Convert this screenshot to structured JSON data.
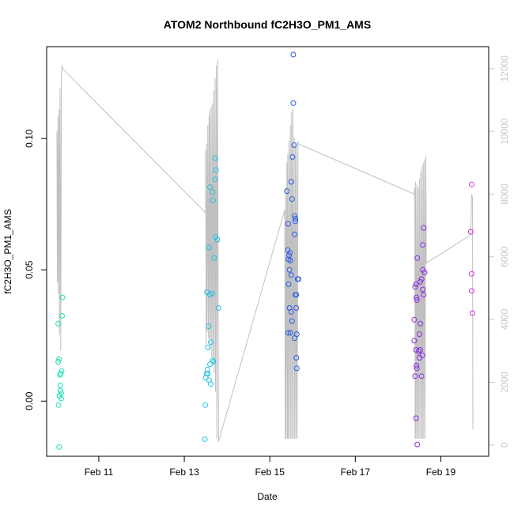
{
  "chart_data": {
    "type": "scatter",
    "title": "ATOM2 Northbound fC2H3O_PM1_AMS",
    "xlabel": "Date",
    "ylabel": "fC2H3O_PM1_AMS",
    "x_ticks": [
      "Feb 11",
      "Feb 13",
      "Feb 15",
      "Feb 17",
      "Feb 19"
    ],
    "x_tick_days": [
      11,
      13,
      15,
      17,
      19
    ],
    "xlim_days": [
      9.78,
      20.12
    ],
    "y_ticks": [
      "0.00",
      "0.05",
      "0.10"
    ],
    "y_tick_values": [
      0.0,
      0.05,
      0.1
    ],
    "ylim": [
      -0.021,
      0.135
    ],
    "y2_ticks": [
      "0",
      "2000",
      "4000",
      "6000",
      "8000",
      "10000",
      "12000"
    ],
    "y2_tick_values": [
      0,
      2000,
      4000,
      6000,
      8000,
      10000,
      12000
    ],
    "y2lim": [
      -360,
      12700
    ],
    "grid": false,
    "colors": {
      "background": "#ffffff",
      "frame": "#000000",
      "line_series": "#c0c0c0",
      "right_axis": "#c8c8c8"
    },
    "series": [
      {
        "color": "#19e0b4",
        "points": [
          [
            10.07,
            -0.0175
          ],
          [
            10.05,
            0.0295
          ],
          [
            10.05,
            0.015
          ],
          [
            10.07,
            0.016
          ],
          [
            10.09,
            0.01
          ],
          [
            10.1,
            0.006
          ],
          [
            10.1,
            0.004
          ],
          [
            10.08,
            0.002
          ],
          [
            10.12,
            0.001
          ],
          [
            10.11,
            0.0105
          ],
          [
            10.13,
            0.0115
          ],
          [
            10.14,
            0.0325
          ],
          [
            10.15,
            0.0395
          ],
          [
            10.06,
            -0.0015
          ],
          [
            10.12,
            0.003
          ]
        ]
      },
      {
        "color": "#22c3e6",
        "points": [
          [
            13.48,
            -0.0145
          ],
          [
            13.49,
            -0.0015
          ],
          [
            13.5,
            0.009
          ],
          [
            13.52,
            0.0105
          ],
          [
            13.54,
            0.012
          ],
          [
            13.55,
            0.0205
          ],
          [
            13.57,
            0.0285
          ],
          [
            13.53,
            0.0415
          ],
          [
            13.6,
            0.0405
          ],
          [
            13.65,
            0.041
          ],
          [
            13.62,
            0.0225
          ],
          [
            13.6,
            0.014
          ],
          [
            13.62,
            0.0065
          ],
          [
            13.58,
            0.008
          ],
          [
            13.68,
            0.015
          ],
          [
            13.66,
            0.0155
          ],
          [
            13.58,
            0.0585
          ],
          [
            13.6,
            0.0815
          ],
          [
            13.66,
            0.0795
          ],
          [
            13.67,
            0.0765
          ],
          [
            13.72,
            0.0845
          ],
          [
            13.72,
            0.0925
          ],
          [
            13.74,
            0.088
          ],
          [
            13.7,
            0.0545
          ],
          [
            13.73,
            0.0625
          ],
          [
            13.77,
            0.0615
          ],
          [
            13.8,
            0.0355
          ],
          [
            13.55,
            0.0105
          ]
        ]
      },
      {
        "color": "#2b5ee8",
        "points": [
          [
            15.4,
            0.08
          ],
          [
            15.43,
            0.0675
          ],
          [
            15.42,
            0.0575
          ],
          [
            15.44,
            0.054
          ],
          [
            15.45,
            0.0555
          ],
          [
            15.47,
            0.0565
          ],
          [
            15.46,
            0.05
          ],
          [
            15.48,
            0.0535
          ],
          [
            15.5,
            0.048
          ],
          [
            15.44,
            0.0445
          ],
          [
            15.46,
            0.0355
          ],
          [
            15.5,
            0.034
          ],
          [
            15.48,
            0.026
          ],
          [
            15.43,
            0.026
          ],
          [
            15.52,
            0.0305
          ],
          [
            15.5,
            0.0835
          ],
          [
            15.52,
            0.077
          ],
          [
            15.53,
            0.093
          ],
          [
            15.55,
            0.1135
          ],
          [
            15.57,
            0.0975
          ],
          [
            15.55,
            0.132
          ],
          [
            15.58,
            0.0635
          ],
          [
            15.58,
            0.0705
          ],
          [
            15.6,
            0.0685
          ],
          [
            15.6,
            0.0405
          ],
          [
            15.62,
            0.0405
          ],
          [
            15.62,
            0.0355
          ],
          [
            15.65,
            0.0465
          ],
          [
            15.67,
            0.0465
          ],
          [
            15.63,
            0.0255
          ],
          [
            15.58,
            0.024
          ],
          [
            15.62,
            0.0165
          ],
          [
            15.63,
            0.0125
          ],
          [
            15.6,
            0.0695
          ]
        ]
      },
      {
        "color": "#8a2be2",
        "points": [
          [
            18.38,
            0.031
          ],
          [
            18.38,
            0.023
          ],
          [
            18.4,
            0.0095
          ],
          [
            18.42,
            0.0195
          ],
          [
            18.43,
            0.0135
          ],
          [
            18.44,
            0.0125
          ],
          [
            18.4,
            0.0435
          ],
          [
            18.42,
            0.0445
          ],
          [
            18.43,
            0.0395
          ],
          [
            18.44,
            0.0385
          ],
          [
            18.45,
            0.0545
          ],
          [
            18.42,
            -0.0065
          ],
          [
            18.45,
            -0.0165
          ],
          [
            18.48,
            0.019
          ],
          [
            18.5,
            0.0165
          ],
          [
            18.52,
            0.0195
          ],
          [
            18.5,
            0.0255
          ],
          [
            18.52,
            0.0295
          ],
          [
            18.55,
            0.0095
          ],
          [
            18.57,
            0.0175
          ],
          [
            18.58,
            0.0425
          ],
          [
            18.6,
            0.0405
          ],
          [
            18.58,
            0.05
          ],
          [
            18.62,
            0.049
          ],
          [
            18.55,
            0.0465
          ],
          [
            18.58,
            0.0595
          ],
          [
            18.6,
            0.066
          ],
          [
            18.52,
            0.0455
          ]
        ]
      },
      {
        "color": "#d633d6",
        "points": [
          [
            19.72,
            0.0825
          ],
          [
            19.7,
            0.0645
          ],
          [
            19.72,
            0.0485
          ],
          [
            19.72,
            0.042
          ],
          [
            19.74,
            0.0335
          ]
        ]
      }
    ],
    "line_series": {
      "axis": "right",
      "color": "#c0c0c0",
      "points": [
        [
          10.02,
          10000
        ],
        [
          10.03,
          5200
        ],
        [
          10.045,
          10500
        ],
        [
          10.055,
          4800
        ],
        [
          10.07,
          10700
        ],
        [
          10.08,
          3500
        ],
        [
          10.095,
          11400
        ],
        [
          10.11,
          3000
        ],
        [
          10.125,
          11800
        ],
        [
          10.14,
          12100
        ],
        [
          10.15,
          12000
        ],
        [
          13.5,
          7400
        ],
        [
          13.5,
          9400
        ],
        [
          13.51,
          3200
        ],
        [
          13.52,
          9600
        ],
        [
          13.53,
          3600
        ],
        [
          13.55,
          10200
        ],
        [
          13.56,
          3400
        ],
        [
          13.58,
          10500
        ],
        [
          13.59,
          3000
        ],
        [
          13.6,
          10700
        ],
        [
          13.61,
          3400
        ],
        [
          13.63,
          10800
        ],
        [
          13.64,
          2800
        ],
        [
          13.66,
          10900
        ],
        [
          13.67,
          2600
        ],
        [
          13.69,
          11300
        ],
        [
          13.7,
          2300
        ],
        [
          13.72,
          11700
        ],
        [
          13.73,
          1700
        ],
        [
          13.75,
          12100
        ],
        [
          13.76,
          200
        ],
        [
          13.78,
          12300
        ],
        [
          13.8,
          100
        ],
        [
          15.35,
          7500
        ],
        [
          15.36,
          200
        ],
        [
          15.37,
          8200
        ],
        [
          15.38,
          200
        ],
        [
          15.4,
          9000
        ],
        [
          15.41,
          200
        ],
        [
          15.42,
          9300
        ],
        [
          15.43,
          200
        ],
        [
          15.45,
          9700
        ],
        [
          15.46,
          200
        ],
        [
          15.48,
          10200
        ],
        [
          15.49,
          200
        ],
        [
          15.51,
          10600
        ],
        [
          15.52,
          200
        ],
        [
          15.54,
          10700
        ],
        [
          15.55,
          200
        ],
        [
          15.57,
          9800
        ],
        [
          15.58,
          200
        ],
        [
          15.6,
          9600
        ],
        [
          15.61,
          200
        ],
        [
          15.63,
          9500
        ],
        [
          15.64,
          200
        ],
        [
          15.66,
          9700
        ],
        [
          15.67,
          9600
        ],
        [
          18.38,
          8000
        ],
        [
          18.39,
          8200
        ],
        [
          18.4,
          200
        ],
        [
          18.41,
          8400
        ],
        [
          18.42,
          200
        ],
        [
          18.44,
          8300
        ],
        [
          18.45,
          200
        ],
        [
          18.47,
          8200
        ],
        [
          18.48,
          200
        ],
        [
          18.5,
          8500
        ],
        [
          18.51,
          200
        ],
        [
          18.53,
          8700
        ],
        [
          18.54,
          200
        ],
        [
          18.56,
          8900
        ],
        [
          18.57,
          200
        ],
        [
          18.59,
          9000
        ],
        [
          18.6,
          200
        ],
        [
          18.62,
          9100
        ],
        [
          18.63,
          200
        ],
        [
          18.65,
          9200
        ],
        [
          18.66,
          5800
        ],
        [
          19.7,
          6700
        ],
        [
          19.72,
          8000
        ],
        [
          19.74,
          7900
        ],
        [
          19.75,
          500
        ]
      ]
    }
  }
}
